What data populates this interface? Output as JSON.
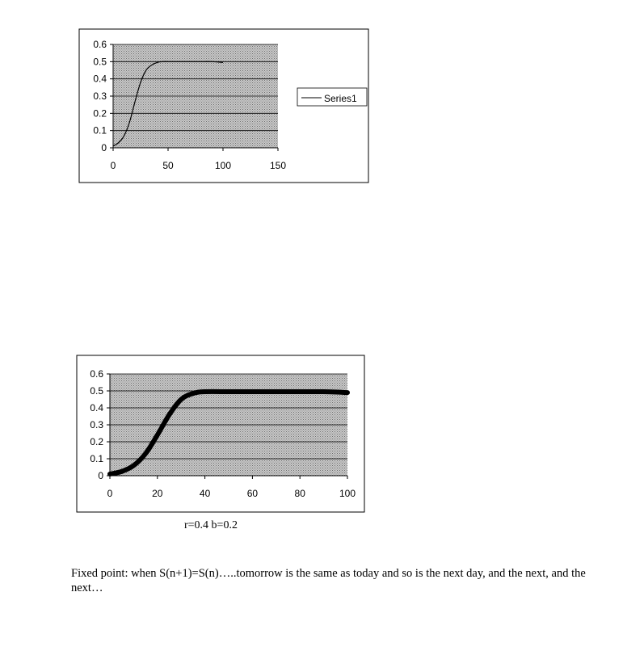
{
  "chart_data": [
    {
      "type": "line",
      "x": [
        0,
        5,
        10,
        15,
        20,
        25,
        30,
        35,
        40,
        45,
        50,
        60,
        70,
        80,
        90,
        100
      ],
      "series": [
        {
          "name": "Series1",
          "values": [
            0.01,
            0.03,
            0.07,
            0.15,
            0.27,
            0.38,
            0.45,
            0.48,
            0.495,
            0.5,
            0.5,
            0.5,
            0.5,
            0.5,
            0.5,
            0.495
          ]
        }
      ],
      "xlim": [
        0,
        150
      ],
      "ylim": [
        0,
        0.6
      ],
      "x_ticks": [
        "0",
        "50",
        "100",
        "150"
      ],
      "y_ticks": [
        "0",
        "0.1",
        "0.2",
        "0.3",
        "0.4",
        "0.5",
        "0.6"
      ],
      "legend": "right",
      "grid": true,
      "line_color": "#000000"
    },
    {
      "type": "line",
      "x": [
        0,
        5,
        10,
        15,
        20,
        25,
        30,
        35,
        40,
        50,
        60,
        70,
        80,
        90,
        100
      ],
      "series": [
        {
          "values": [
            0.01,
            0.025,
            0.06,
            0.13,
            0.24,
            0.36,
            0.45,
            0.485,
            0.495,
            0.495,
            0.495,
            0.495,
            0.495,
            0.495,
            0.49
          ]
        }
      ],
      "xlim": [
        0,
        100
      ],
      "ylim": [
        0,
        0.6
      ],
      "x_ticks": [
        "0",
        "20",
        "40",
        "60",
        "80",
        "100"
      ],
      "y_ticks": [
        "0",
        "0.1",
        "0.2",
        "0.3",
        "0.4",
        "0.5",
        "0.6"
      ],
      "grid": true,
      "line_color": "#000000"
    }
  ],
  "caption": "r=0.4  b=0.2",
  "note": "Fixed point: when S(n+1)=S(n)…..tomorrow is the same as today and so is the next day, and the next, and the next…"
}
